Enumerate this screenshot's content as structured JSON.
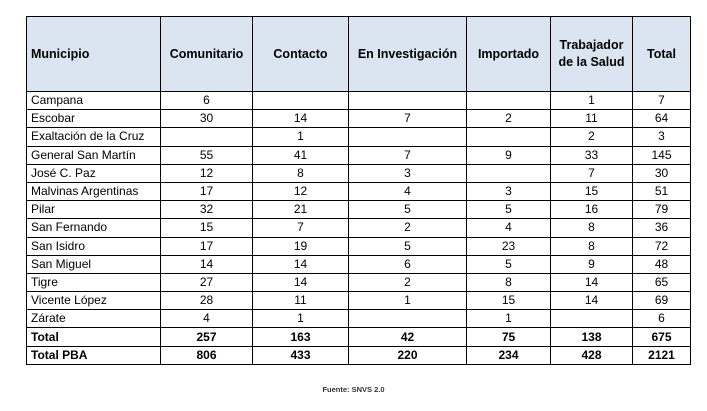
{
  "table": {
    "headers": [
      "Municipio",
      "Comunitario",
      "Contacto",
      "En Investigación",
      "Importado",
      "Trabajador de la Salud",
      "Total"
    ],
    "rows": [
      [
        "Campana",
        "6",
        "",
        "",
        "",
        "1",
        "7"
      ],
      [
        "Escobar",
        "30",
        "14",
        "7",
        "2",
        "11",
        "64"
      ],
      [
        "Exaltación de la Cruz",
        "",
        "1",
        "",
        "",
        "2",
        "3"
      ],
      [
        "General San Martín",
        "55",
        "41",
        "7",
        "9",
        "33",
        "145"
      ],
      [
        "José C. Paz",
        "12",
        "8",
        "3",
        "",
        "7",
        "30"
      ],
      [
        "Malvinas Argentinas",
        "17",
        "12",
        "4",
        "3",
        "15",
        "51"
      ],
      [
        "Pilar",
        "32",
        "21",
        "5",
        "5",
        "16",
        "79"
      ],
      [
        "San Fernando",
        "15",
        "7",
        "2",
        "4",
        "8",
        "36"
      ],
      [
        "San Isidro",
        "17",
        "19",
        "5",
        "23",
        "8",
        "72"
      ],
      [
        "San Miguel",
        "14",
        "14",
        "6",
        "5",
        "9",
        "48"
      ],
      [
        "Tigre",
        "27",
        "14",
        "2",
        "8",
        "14",
        "65"
      ],
      [
        "Vicente López",
        "28",
        "11",
        "1",
        "15",
        "14",
        "69"
      ],
      [
        "Zárate",
        "4",
        "1",
        "",
        "1",
        "",
        "6"
      ]
    ],
    "totals": [
      [
        "Total",
        "257",
        "163",
        "42",
        "75",
        "138",
        "675"
      ],
      [
        "Total PBA",
        "806",
        "433",
        "220",
        "234",
        "428",
        "2121"
      ]
    ]
  },
  "source": "Fuente: SNVS 2.0",
  "colors": {
    "header_bg": "#dbe5f1",
    "border": "#000000"
  }
}
